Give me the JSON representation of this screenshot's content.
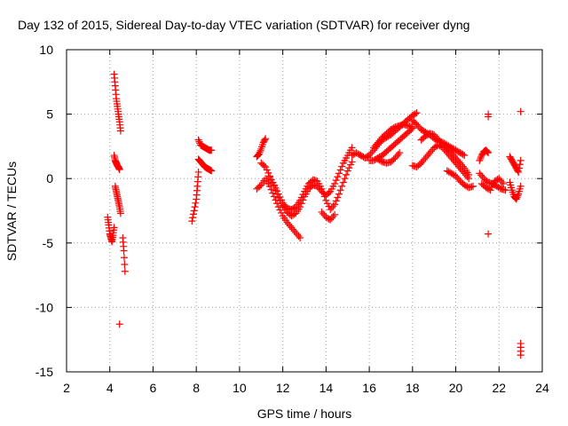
{
  "chart_data": {
    "type": "scatter",
    "title": "Day 132 of 2015, Sidereal Day-to-day VTEC variation (SDTVAR) for receiver dyng",
    "xlabel": "GPS time / hours",
    "ylabel": "SDTVAR / TECUs",
    "xlim": [
      2,
      24
    ],
    "ylim": [
      -15,
      10
    ],
    "xticks": [
      "2",
      "4",
      "6",
      "8",
      "10",
      "12",
      "14",
      "16",
      "18",
      "20",
      "22",
      "24"
    ],
    "yticks": [
      "10",
      "5",
      "0",
      "-5",
      "-10",
      "-15"
    ],
    "grid": true,
    "marker": "+",
    "color": "#ff0000",
    "series": [
      {
        "name": "SDTVAR",
        "segments": [
          {
            "x": [
              3.9,
              3.95,
              4.0,
              4.05,
              4.1,
              4.15,
              4.2
            ],
            "y": [
              -3.0,
              -3.6,
              -4.3,
              -4.6,
              -4.9,
              -4.4,
              -3.8
            ]
          },
          {
            "x": [
              4.2,
              4.25,
              4.3,
              4.35,
              4.4,
              4.45,
              4.5
            ],
            "y": [
              8.1,
              7.2,
              6.2,
              5.6,
              5.0,
              4.4,
              3.7
            ]
          },
          {
            "x": [
              4.2,
              4.25,
              4.3,
              4.35,
              4.4,
              4.45
            ],
            "y": [
              1.8,
              1.4,
              1.2,
              1.0,
              0.9,
              0.7
            ]
          },
          {
            "x": [
              4.25,
              4.3,
              4.35,
              4.4,
              4.45,
              4.5
            ],
            "y": [
              -0.6,
              -1.0,
              -1.4,
              -1.8,
              -2.2,
              -2.7
            ]
          },
          {
            "x": [
              4.45,
              4.6,
              4.65,
              4.7
            ],
            "y": [
              -11.3,
              -4.6,
              -5.6,
              -7.2
            ]
          },
          {
            "x": [
              7.8,
              7.9,
              8.0,
              8.05,
              8.1
            ],
            "y": [
              -3.3,
              -2.5,
              -1.6,
              -0.6,
              0.5
            ]
          },
          {
            "x": [
              8.1,
              8.2,
              8.3,
              8.4,
              8.5,
              8.6,
              8.7
            ],
            "y": [
              3.0,
              2.6,
              2.5,
              2.4,
              2.3,
              2.2,
              2.2
            ]
          },
          {
            "x": [
              8.1,
              8.2,
              8.3,
              8.4,
              8.5,
              8.6,
              8.7
            ],
            "y": [
              1.5,
              1.3,
              1.1,
              0.9,
              0.8,
              0.7,
              0.6
            ]
          },
          {
            "x": [
              10.8,
              10.9,
              11.0,
              11.1,
              11.2
            ],
            "y": [
              1.7,
              1.9,
              2.3,
              2.8,
              3.1
            ]
          },
          {
            "x": [
              10.8,
              11.0,
              11.2,
              11.4,
              11.6,
              11.8,
              12.0,
              12.2,
              12.4,
              12.6,
              12.8
            ],
            "y": [
              -0.8,
              -0.5,
              0.0,
              -0.6,
              -1.4,
              -2.2,
              -2.9,
              -3.4,
              -3.8,
              -4.2,
              -4.6
            ]
          },
          {
            "x": [
              11.0,
              11.2,
              11.4,
              11.6,
              11.8,
              12.0,
              12.2,
              12.4,
              12.6,
              12.8,
              13.0,
              13.2,
              13.4,
              13.6,
              13.8,
              14.0,
              14.2,
              14.4,
              14.6,
              14.8,
              15.0,
              15.2
            ],
            "y": [
              1.2,
              0.9,
              0.2,
              -0.6,
              -1.5,
              -2.1,
              -2.6,
              -2.9,
              -2.7,
              -2.2,
              -1.4,
              -0.8,
              -0.5,
              -0.6,
              -1.0,
              -1.3,
              -1.0,
              -0.4,
              0.4,
              1.2,
              1.8,
              2.4
            ]
          },
          {
            "x": [
              11.4,
              11.6,
              11.8,
              12.0,
              12.2,
              12.4,
              12.6,
              12.8,
              13.0,
              13.2,
              13.4,
              13.6,
              13.8,
              14.0,
              14.2,
              14.4,
              14.6,
              14.8,
              15.0,
              15.2
            ],
            "y": [
              0.1,
              -0.5,
              -1.2,
              -1.9,
              -2.3,
              -2.4,
              -2.2,
              -1.7,
              -1.0,
              -0.4,
              -0.1,
              -0.2,
              -0.8,
              -1.7,
              -2.4,
              -2.0,
              -1.2,
              -0.3,
              0.6,
              1.3
            ]
          },
          {
            "x": [
              13.8,
              14.0,
              14.2,
              14.4
            ],
            "y": [
              -2.6,
              -3.0,
              -3.2,
              -2.8
            ]
          },
          {
            "x": [
              15.2,
              15.4,
              15.6,
              15.8,
              16.0,
              16.2,
              16.4,
              16.6,
              16.8,
              17.0,
              17.2,
              17.4,
              17.6,
              17.8,
              18.0,
              18.2
            ],
            "y": [
              1.8,
              2.0,
              1.8,
              1.6,
              1.8,
              2.2,
              2.6,
              3.0,
              3.2,
              3.4,
              3.7,
              4.0,
              4.3,
              4.6,
              4.9,
              5.1
            ]
          },
          {
            "x": [
              16.0,
              16.2,
              16.4,
              16.6,
              16.8,
              17.0,
              17.2,
              17.4,
              17.6,
              17.8,
              18.0
            ],
            "y": [
              1.4,
              1.4,
              1.6,
              1.8,
              2.1,
              2.4,
              2.7,
              3.0,
              3.3,
              3.6,
              3.9
            ]
          },
          {
            "x": [
              16.2,
              16.4,
              16.6,
              16.8,
              17.0,
              17.2,
              17.4,
              17.6,
              17.8,
              18.0
            ],
            "y": [
              2.4,
              2.8,
              3.2,
              3.5,
              3.8,
              4.0,
              4.1,
              4.2,
              4.1,
              4.0
            ]
          },
          {
            "x": [
              16.4,
              16.6,
              16.8,
              17.0,
              17.2,
              17.4
            ],
            "y": [
              1.5,
              1.3,
              1.2,
              1.3,
              1.6,
              2.0
            ]
          },
          {
            "x": [
              18.0,
              18.2,
              18.4,
              18.6,
              18.8,
              19.0,
              19.2,
              19.4,
              19.6,
              19.8,
              20.0,
              20.2,
              20.4
            ],
            "y": [
              4.5,
              4.2,
              3.8,
              3.6,
              3.4,
              3.1,
              2.9,
              2.8,
              2.6,
              2.4,
              2.2,
              2.0,
              1.8
            ]
          },
          {
            "x": [
              18.0,
              18.2,
              18.4,
              18.6,
              18.8,
              19.0,
              19.2,
              19.4,
              19.6,
              19.8,
              20.0,
              20.2,
              20.4,
              20.6
            ],
            "y": [
              1.0,
              0.9,
              1.2,
              1.6,
              2.0,
              2.4,
              2.6,
              2.4,
              2.0,
              1.6,
              1.2,
              0.8,
              0.4,
              0.0
            ]
          },
          {
            "x": [
              18.4,
              18.6,
              18.8,
              19.0,
              19.2,
              19.4,
              19.6,
              19.8,
              20.0,
              20.2,
              20.4,
              20.6
            ],
            "y": [
              3.0,
              3.3,
              3.5,
              3.4,
              3.0,
              2.7,
              2.3,
              2.0,
              1.6,
              1.2,
              0.8,
              0.3
            ]
          },
          {
            "x": [
              19.6,
              19.8,
              20.0,
              20.2,
              20.4,
              20.6,
              20.8
            ],
            "y": [
              0.6,
              0.4,
              0.2,
              -0.2,
              -0.5,
              -0.7,
              -0.6
            ]
          },
          {
            "x": [
              21.1,
              21.2,
              21.3,
              21.4,
              21.5
            ],
            "y": [
              1.4,
              1.8,
              2.1,
              2.2,
              2.0
            ]
          },
          {
            "x": [
              21.1,
              21.3,
              21.5,
              21.7,
              21.9,
              22.1,
              22.3
            ],
            "y": [
              0.4,
              0.0,
              -0.3,
              -0.4,
              -0.6,
              -0.8,
              -0.9
            ]
          },
          {
            "x": [
              21.2,
              21.4,
              21.6,
              21.8,
              22.0,
              22.2
            ],
            "y": [
              -0.4,
              -0.7,
              -0.9,
              -0.2,
              0.0,
              -0.4
            ]
          },
          {
            "x": [
              21.5,
              21.5,
              21.5
            ],
            "y": [
              5.0,
              4.8,
              -4.3
            ]
          },
          {
            "x": [
              22.5,
              22.6,
              22.7,
              22.8,
              22.9,
              23.0
            ],
            "y": [
              1.7,
              1.4,
              1.1,
              0.8,
              0.5,
              1.4
            ]
          },
          {
            "x": [
              22.5,
              22.6,
              22.7,
              22.8,
              22.9,
              23.0
            ],
            "y": [
              -0.3,
              -0.9,
              -1.4,
              -1.6,
              -1.2,
              -0.6
            ]
          },
          {
            "x": [
              23.0,
              23.0,
              23.0,
              23.0,
              23.0
            ],
            "y": [
              5.2,
              -12.8,
              -13.1,
              -13.4,
              -13.7
            ]
          }
        ]
      }
    ]
  }
}
